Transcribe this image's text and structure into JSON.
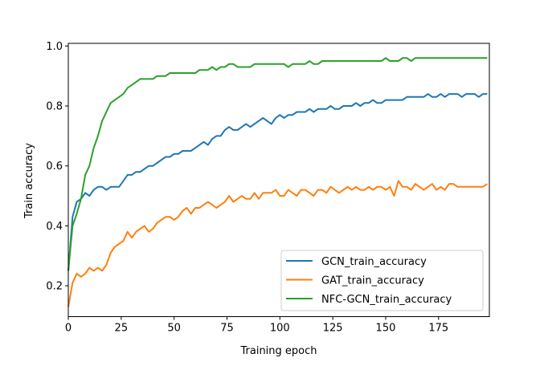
{
  "chart_data": {
    "type": "line",
    "title": "",
    "xlabel": "Training epoch",
    "ylabel": "Train accuracy",
    "xlim": [
      0,
      199
    ],
    "ylim": [
      0.097,
      1.009
    ],
    "xticks": [
      0,
      25,
      50,
      75,
      100,
      125,
      150,
      175
    ],
    "yticks": [
      0.2,
      0.4,
      0.6,
      0.8,
      1.0
    ],
    "ytick_labels": [
      "0.2",
      "0.4",
      "0.6",
      "0.8",
      "1.0"
    ],
    "grid": false,
    "legend_placement": "lower-right",
    "x": [
      0,
      2,
      4,
      6,
      8,
      10,
      12,
      14,
      16,
      18,
      20,
      22,
      24,
      26,
      28,
      30,
      32,
      34,
      36,
      38,
      40,
      42,
      44,
      46,
      48,
      50,
      52,
      54,
      56,
      58,
      60,
      62,
      64,
      66,
      68,
      70,
      72,
      74,
      76,
      78,
      80,
      82,
      84,
      86,
      88,
      90,
      92,
      94,
      96,
      98,
      100,
      102,
      104,
      106,
      108,
      110,
      112,
      114,
      116,
      118,
      120,
      122,
      124,
      126,
      128,
      130,
      132,
      134,
      136,
      138,
      140,
      142,
      144,
      146,
      148,
      150,
      152,
      154,
      156,
      158,
      160,
      162,
      164,
      166,
      168,
      170,
      172,
      174,
      176,
      178,
      180,
      182,
      184,
      186,
      188,
      190,
      192,
      194,
      196,
      198
    ],
    "series": [
      {
        "name": "GCN_train_accuracy",
        "color": "#1f77b4",
        "values": [
          0.25,
          0.43,
          0.48,
          0.49,
          0.51,
          0.5,
          0.52,
          0.53,
          0.53,
          0.52,
          0.53,
          0.53,
          0.53,
          0.55,
          0.57,
          0.57,
          0.58,
          0.58,
          0.59,
          0.6,
          0.6,
          0.61,
          0.62,
          0.63,
          0.63,
          0.64,
          0.64,
          0.65,
          0.65,
          0.65,
          0.66,
          0.67,
          0.68,
          0.67,
          0.69,
          0.7,
          0.7,
          0.72,
          0.73,
          0.72,
          0.72,
          0.73,
          0.74,
          0.73,
          0.74,
          0.75,
          0.76,
          0.75,
          0.74,
          0.76,
          0.77,
          0.76,
          0.77,
          0.77,
          0.78,
          0.78,
          0.78,
          0.79,
          0.78,
          0.79,
          0.79,
          0.79,
          0.8,
          0.79,
          0.79,
          0.8,
          0.8,
          0.8,
          0.81,
          0.8,
          0.81,
          0.81,
          0.82,
          0.81,
          0.81,
          0.82,
          0.82,
          0.82,
          0.82,
          0.82,
          0.83,
          0.83,
          0.83,
          0.83,
          0.83,
          0.84,
          0.83,
          0.83,
          0.84,
          0.83,
          0.84,
          0.84,
          0.84,
          0.83,
          0.84,
          0.84,
          0.84,
          0.83,
          0.84,
          0.84
        ]
      },
      {
        "name": "GAT_train_accuracy",
        "color": "#ff7f0e",
        "values": [
          0.13,
          0.21,
          0.24,
          0.23,
          0.24,
          0.26,
          0.25,
          0.26,
          0.25,
          0.27,
          0.31,
          0.33,
          0.34,
          0.35,
          0.38,
          0.36,
          0.38,
          0.39,
          0.4,
          0.38,
          0.39,
          0.41,
          0.42,
          0.43,
          0.43,
          0.42,
          0.43,
          0.45,
          0.46,
          0.44,
          0.46,
          0.46,
          0.47,
          0.48,
          0.47,
          0.46,
          0.47,
          0.48,
          0.5,
          0.48,
          0.49,
          0.5,
          0.49,
          0.49,
          0.51,
          0.49,
          0.51,
          0.51,
          0.51,
          0.52,
          0.5,
          0.5,
          0.52,
          0.51,
          0.5,
          0.52,
          0.52,
          0.51,
          0.5,
          0.52,
          0.52,
          0.51,
          0.53,
          0.52,
          0.51,
          0.52,
          0.53,
          0.52,
          0.53,
          0.52,
          0.52,
          0.53,
          0.52,
          0.53,
          0.53,
          0.52,
          0.53,
          0.5,
          0.55,
          0.53,
          0.53,
          0.52,
          0.54,
          0.53,
          0.52,
          0.53,
          0.54,
          0.52,
          0.53,
          0.52,
          0.54,
          0.54,
          0.53,
          0.53,
          0.53,
          0.53,
          0.53,
          0.53,
          0.53,
          0.54
        ]
      },
      {
        "name": "NFC-GCN_train_accuracy",
        "color": "#2ca02c",
        "values": [
          0.25,
          0.4,
          0.44,
          0.49,
          0.57,
          0.6,
          0.66,
          0.7,
          0.75,
          0.78,
          0.81,
          0.82,
          0.83,
          0.84,
          0.86,
          0.87,
          0.88,
          0.89,
          0.89,
          0.89,
          0.89,
          0.9,
          0.9,
          0.9,
          0.91,
          0.91,
          0.91,
          0.91,
          0.91,
          0.91,
          0.91,
          0.92,
          0.92,
          0.92,
          0.93,
          0.92,
          0.93,
          0.93,
          0.94,
          0.94,
          0.93,
          0.93,
          0.93,
          0.93,
          0.94,
          0.94,
          0.94,
          0.94,
          0.94,
          0.94,
          0.94,
          0.94,
          0.93,
          0.94,
          0.94,
          0.94,
          0.94,
          0.95,
          0.94,
          0.94,
          0.95,
          0.95,
          0.95,
          0.95,
          0.95,
          0.95,
          0.95,
          0.95,
          0.95,
          0.95,
          0.95,
          0.95,
          0.95,
          0.95,
          0.95,
          0.96,
          0.95,
          0.95,
          0.95,
          0.96,
          0.96,
          0.95,
          0.96,
          0.96,
          0.96,
          0.96,
          0.96,
          0.96,
          0.96,
          0.96,
          0.96,
          0.96,
          0.96,
          0.96,
          0.96,
          0.96,
          0.96,
          0.96,
          0.96,
          0.96
        ]
      }
    ]
  }
}
